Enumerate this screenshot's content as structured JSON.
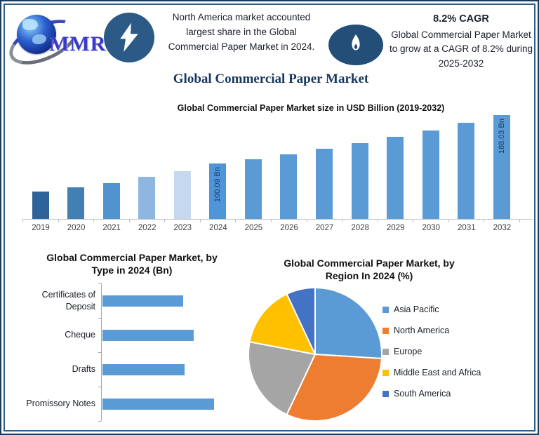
{
  "header": {
    "logo": {
      "text": "MMR"
    },
    "headline": "North America market accounted largest share in the Global Commercial Paper Market in 2024.",
    "cagr": {
      "title": "8.2% CAGR",
      "description": "Global Commercial Paper Market to grow at a CAGR of 8.2% during 2025-2032"
    }
  },
  "main_title": "Global Commercial Paper Market",
  "colors": {
    "accent_navy": "#17375e",
    "bolt_badge": "#2b5a86",
    "flame_badge": "#234e78",
    "bar_default": "#5b9bd5",
    "axis_gray": "#bfbfbf"
  },
  "chart_data": [
    {
      "type": "bar",
      "title": "Global Commercial Paper Market size in USD Billion (2019-2032)",
      "unit": "USD Billion",
      "categories": [
        "2019",
        "2020",
        "2021",
        "2022",
        "2023",
        "2024",
        "2025",
        "2026",
        "2027",
        "2028",
        "2029",
        "2030",
        "2031",
        "2032"
      ],
      "values": [
        49.0,
        57.0,
        65.4,
        76.0,
        87.0,
        100.09,
        108.3,
        117.18,
        126.78,
        137.18,
        148.43,
        160.6,
        173.77,
        188.03
      ],
      "ylim": [
        0,
        200
      ],
      "grid": false,
      "bar_colors": [
        "#2e6399",
        "#417fb5",
        "#5193ce",
        "#8fb6e0",
        "#c5d8ef",
        "#4e96d9",
        "#5b9bd5",
        "#5b9bd5",
        "#5b9bd5",
        "#5b9bd5",
        "#5b9bd5",
        "#5b9bd5",
        "#5b9bd5",
        "#5b9bd5"
      ],
      "annotations": [
        {
          "category": "2024",
          "label": "100.09 Bn"
        },
        {
          "category": "2032",
          "label": "188.03 Bn"
        }
      ]
    },
    {
      "type": "bar",
      "orientation": "horizontal",
      "title": "Global Commercial Paper Market, by Type in 2024 (Bn)",
      "categories": [
        "Certificates of Deposit",
        "Cheque",
        "Drafts",
        "Promissory Notes"
      ],
      "values": [
        22.0,
        25.0,
        22.5,
        30.5
      ],
      "bar_color": "#5b9bd5",
      "grid": false
    },
    {
      "type": "pie",
      "title": "Global Commercial Paper Market, by Region In 2024 (%)",
      "labels": [
        "Asia Pacific",
        "North America",
        "Europe",
        "Middle East and Africa",
        "South America"
      ],
      "values": [
        26,
        31,
        21,
        15,
        7
      ],
      "colors": [
        "#5b9bd5",
        "#ed7d31",
        "#a5a5a5",
        "#ffc000",
        "#4472c4"
      ],
      "legend_position": "right"
    }
  ]
}
